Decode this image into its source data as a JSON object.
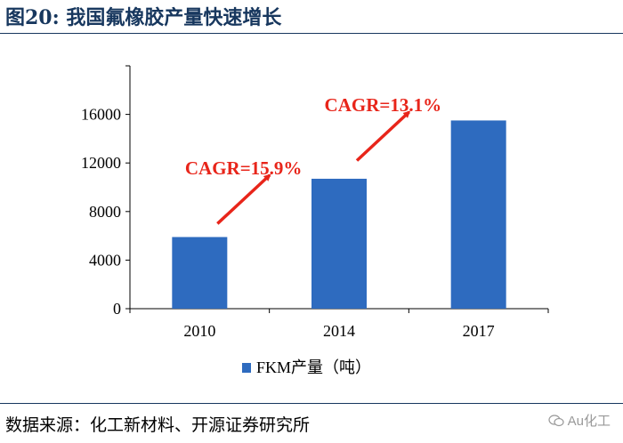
{
  "title": "图20:  我国氟橡胶产量快速增长",
  "source": "数据来源：化工新材料、开源证券研究所",
  "watermark": "Au化工",
  "colors": {
    "bar": "#2E6BBF",
    "arrow": "#E8251A",
    "annotation": "#E8251A",
    "title": "#17375E"
  },
  "chart_data": {
    "type": "bar",
    "categories": [
      "2010",
      "2014",
      "2017"
    ],
    "series": [
      {
        "name": "FKM产量（吨）",
        "values": [
          5900,
          10700,
          15500
        ]
      }
    ],
    "ylim": [
      0,
      20000
    ],
    "yticks": [
      "0",
      "4000",
      "8000",
      "12000",
      "16000"
    ],
    "xlabel": "",
    "ylabel": "",
    "legend": "bottom",
    "grid": false,
    "annotations": [
      {
        "text": "CAGR=15.9%",
        "from": [
          "2010",
          7000
        ],
        "to": [
          "2014",
          11000
        ]
      },
      {
        "text": "CAGR=13.1%",
        "from": [
          "2014",
          12200
        ],
        "to": [
          "2017",
          16200
        ]
      }
    ]
  }
}
